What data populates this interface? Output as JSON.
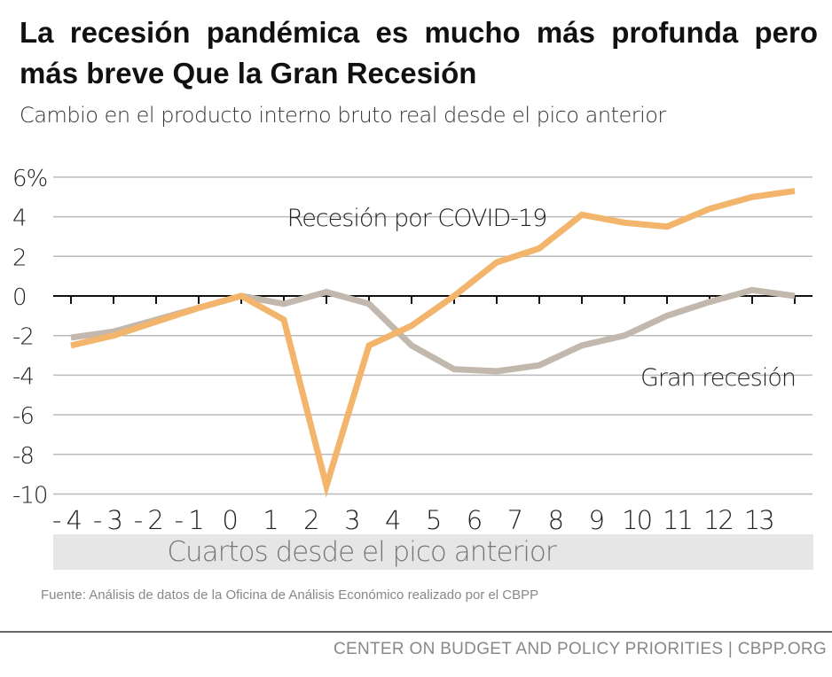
{
  "title": "La recesión pandémica es mucho más profunda pero más breve Que la Gran Recesión",
  "subtitle": "Cambio en el producto interno bruto real desde el pico anterior",
  "source": "Fuente: Análisis de datos de la Oficina de Análisis Económico realizado por el CBPP",
  "credit": "CENTER ON BUDGET AND POLICY PRIORITIES | CBPP.ORG",
  "chart_data": {
    "type": "line",
    "xlabel": "Cuartos desde el pico anterior",
    "x": [
      -4,
      -3,
      -2,
      -1,
      0,
      1,
      2,
      3,
      4,
      5,
      6,
      7,
      8,
      9,
      10,
      11,
      12,
      13
    ],
    "x_tick_labels": [
      "- 4",
      "- 3",
      "- 2",
      "- 1",
      "0",
      "1",
      "2",
      "3",
      "4",
      "5",
      "6",
      "7",
      "8",
      "9",
      "10",
      "11",
      "12",
      "13"
    ],
    "y_ticks": [
      6,
      4,
      2,
      0,
      -2,
      -4,
      -6,
      -8,
      -10
    ],
    "y_tick_labels": [
      "6%",
      "4",
      "2",
      "0",
      "-2",
      "-4",
      "-6",
      "-8",
      "-10"
    ],
    "ylim": [
      -10,
      6
    ],
    "grid": true,
    "series": [
      {
        "name": "Recesión por COVID-19",
        "color": "#f2b56b",
        "values": [
          -2.5,
          -2.0,
          -1.3,
          -0.6,
          0.0,
          -1.2,
          -9.6,
          -2.5,
          -1.5,
          0.0,
          1.7,
          2.4,
          4.1,
          3.7,
          3.5,
          4.4,
          5.0,
          5.3
        ]
      },
      {
        "name": "Gran recesión",
        "color": "#c2b8ad",
        "values": [
          -2.1,
          -1.8,
          -1.2,
          -0.6,
          0.0,
          -0.4,
          0.2,
          -0.4,
          -2.5,
          -3.7,
          -3.8,
          -3.5,
          -2.5,
          -2.0,
          -1.0,
          -0.3,
          0.3,
          0.0
        ]
      }
    ]
  }
}
